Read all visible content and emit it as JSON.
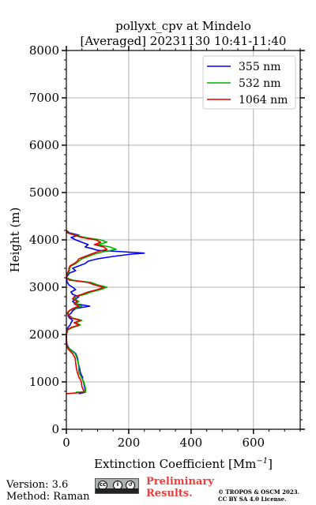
{
  "chart_data": {
    "type": "line",
    "title": "pollyxt_cpv at Mindelo",
    "subtitle": "[Averaged] 20231130 10:41-11:40",
    "xlabel": "Extinction Coefficient [Mm",
    "xlabel_sup": "−1",
    "xlabel_end": "]",
    "ylabel": "Height (m)",
    "xlim": [
      0,
      750
    ],
    "ylim": [
      0,
      8000
    ],
    "x_ticks": [
      0,
      200,
      400,
      600
    ],
    "y_ticks": [
      0,
      1000,
      2000,
      3000,
      4000,
      5000,
      6000,
      7000,
      8000
    ],
    "grid": true,
    "legend_position": "top-right",
    "series": [
      {
        "name": "355 nm",
        "color": "#0000ff",
        "points": [
          [
            40,
            750
          ],
          [
            60,
            780
          ],
          [
            60,
            830
          ],
          [
            58,
            900
          ],
          [
            55,
            1000
          ],
          [
            52,
            1050
          ],
          [
            52,
            1100
          ],
          [
            48,
            1150
          ],
          [
            45,
            1200
          ],
          [
            42,
            1300
          ],
          [
            38,
            1400
          ],
          [
            36,
            1500
          ],
          [
            30,
            1600
          ],
          [
            20,
            1650
          ],
          [
            10,
            1700
          ],
          [
            5,
            1750
          ],
          [
            2,
            1800
          ],
          [
            0,
            1900
          ],
          [
            0,
            2000
          ],
          [
            2,
            2100
          ],
          [
            5,
            2150
          ],
          [
            12,
            2200
          ],
          [
            15,
            2250
          ],
          [
            20,
            2300
          ],
          [
            10,
            2350
          ],
          [
            5,
            2400
          ],
          [
            15,
            2450
          ],
          [
            20,
            2500
          ],
          [
            30,
            2550
          ],
          [
            75,
            2600
          ],
          [
            30,
            2650
          ],
          [
            20,
            2700
          ],
          [
            30,
            2750
          ],
          [
            40,
            2800
          ],
          [
            20,
            2850
          ],
          [
            15,
            2900
          ],
          [
            30,
            2950
          ],
          [
            20,
            3000
          ],
          [
            8,
            3050
          ],
          [
            3,
            3100
          ],
          [
            0,
            3200
          ],
          [
            10,
            3300
          ],
          [
            30,
            3350
          ],
          [
            20,
            3400
          ],
          [
            40,
            3450
          ],
          [
            60,
            3500
          ],
          [
            70,
            3550
          ],
          [
            100,
            3600
          ],
          [
            150,
            3650
          ],
          [
            210,
            3700
          ],
          [
            250,
            3720
          ],
          [
            180,
            3750
          ],
          [
            100,
            3780
          ],
          [
            80,
            3820
          ],
          [
            60,
            3850
          ],
          [
            70,
            3900
          ],
          [
            50,
            3950
          ],
          [
            30,
            4000
          ],
          [
            15,
            4050
          ],
          [
            40,
            4100
          ],
          [
            10,
            4150
          ],
          [
            0,
            4200
          ]
        ]
      },
      {
        "name": "532 nm",
        "color": "#00b300",
        "points": [
          [
            30,
            780
          ],
          [
            62,
            790
          ],
          [
            62,
            830
          ],
          [
            60,
            900
          ],
          [
            56,
            1000
          ],
          [
            52,
            1050
          ],
          [
            48,
            1100
          ],
          [
            44,
            1150
          ],
          [
            40,
            1200
          ],
          [
            40,
            1300
          ],
          [
            38,
            1400
          ],
          [
            34,
            1500
          ],
          [
            28,
            1600
          ],
          [
            18,
            1650
          ],
          [
            8,
            1700
          ],
          [
            3,
            1750
          ],
          [
            2,
            1800
          ],
          [
            0,
            1900
          ],
          [
            0,
            2000
          ],
          [
            5,
            2100
          ],
          [
            20,
            2150
          ],
          [
            45,
            2200
          ],
          [
            30,
            2250
          ],
          [
            50,
            2300
          ],
          [
            20,
            2350
          ],
          [
            10,
            2400
          ],
          [
            5,
            2450
          ],
          [
            10,
            2500
          ],
          [
            25,
            2550
          ],
          [
            50,
            2600
          ],
          [
            30,
            2650
          ],
          [
            40,
            2700
          ],
          [
            25,
            2750
          ],
          [
            30,
            2800
          ],
          [
            60,
            2850
          ],
          [
            80,
            2900
          ],
          [
            110,
            2950
          ],
          [
            130,
            3000
          ],
          [
            100,
            3050
          ],
          [
            80,
            3100
          ],
          [
            20,
            3150
          ],
          [
            0,
            3200
          ],
          [
            5,
            3300
          ],
          [
            10,
            3350
          ],
          [
            10,
            3400
          ],
          [
            15,
            3450
          ],
          [
            30,
            3500
          ],
          [
            40,
            3550
          ],
          [
            50,
            3600
          ],
          [
            70,
            3650
          ],
          [
            90,
            3700
          ],
          [
            120,
            3750
          ],
          [
            160,
            3800
          ],
          [
            140,
            3850
          ],
          [
            100,
            3900
          ],
          [
            130,
            3950
          ],
          [
            110,
            4000
          ],
          [
            60,
            4050
          ],
          [
            30,
            4100
          ],
          [
            5,
            4150
          ],
          [
            0,
            4200
          ]
        ]
      },
      {
        "name": "1064 nm",
        "color": "#e60000",
        "points": [
          [
            0,
            750
          ],
          [
            55,
            780
          ],
          [
            55,
            820
          ],
          [
            50,
            900
          ],
          [
            48,
            1000
          ],
          [
            45,
            1050
          ],
          [
            40,
            1100
          ],
          [
            38,
            1150
          ],
          [
            35,
            1200
          ],
          [
            32,
            1300
          ],
          [
            30,
            1400
          ],
          [
            28,
            1500
          ],
          [
            20,
            1600
          ],
          [
            12,
            1650
          ],
          [
            5,
            1700
          ],
          [
            2,
            1750
          ],
          [
            0,
            1800
          ],
          [
            0,
            1900
          ],
          [
            0,
            2000
          ],
          [
            3,
            2100
          ],
          [
            15,
            2150
          ],
          [
            40,
            2200
          ],
          [
            25,
            2250
          ],
          [
            45,
            2300
          ],
          [
            15,
            2350
          ],
          [
            8,
            2400
          ],
          [
            3,
            2450
          ],
          [
            8,
            2500
          ],
          [
            20,
            2550
          ],
          [
            40,
            2600
          ],
          [
            25,
            2650
          ],
          [
            35,
            2700
          ],
          [
            20,
            2750
          ],
          [
            25,
            2800
          ],
          [
            50,
            2850
          ],
          [
            70,
            2900
          ],
          [
            100,
            2950
          ],
          [
            120,
            3000
          ],
          [
            90,
            3050
          ],
          [
            70,
            3100
          ],
          [
            10,
            3150
          ],
          [
            0,
            3200
          ],
          [
            3,
            3300
          ],
          [
            8,
            3350
          ],
          [
            8,
            3400
          ],
          [
            12,
            3450
          ],
          [
            25,
            3500
          ],
          [
            35,
            3550
          ],
          [
            40,
            3600
          ],
          [
            60,
            3650
          ],
          [
            80,
            3700
          ],
          [
            100,
            3750
          ],
          [
            130,
            3800
          ],
          [
            120,
            3850
          ],
          [
            90,
            3900
          ],
          [
            110,
            3950
          ],
          [
            95,
            4000
          ],
          [
            50,
            4050
          ],
          [
            25,
            4100
          ],
          [
            3,
            4150
          ],
          [
            0,
            4200
          ]
        ]
      }
    ]
  },
  "footer": {
    "version": "Version: 3.6",
    "method": "Method: Raman",
    "preliminary_1": "Preliminary",
    "preliminary_2": "Results.",
    "copyright_1": "© TROPOS & OSCM 2023.",
    "copyright_2": "CC BY SA 4.0 License.",
    "license_icon": "cc-by-sa-icon"
  }
}
